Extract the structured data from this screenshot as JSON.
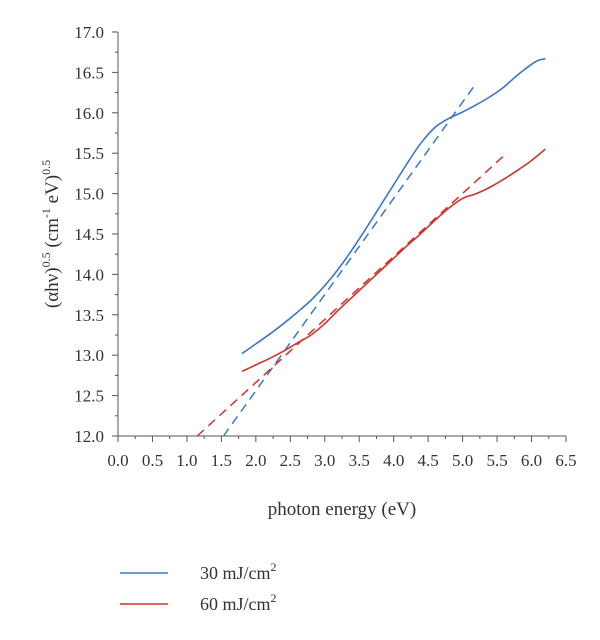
{
  "chart_data": {
    "type": "line",
    "title": "",
    "xlabel": "photon energy (eV)",
    "ylabel": {
      "base": "(αhν)",
      "base_exp": "0.5",
      "unit_open": " (cm",
      "unit_exp": "-1",
      "unit_mid": " eV)",
      "unit_exp2": "0.5"
    },
    "xlim": [
      0.0,
      6.5
    ],
    "ylim": [
      12.0,
      17.0
    ],
    "xticks": [
      "0.0",
      "0.5",
      "1.0",
      "1.5",
      "2.0",
      "2.5",
      "3.0",
      "3.5",
      "4.0",
      "4.5",
      "5.0",
      "5.5",
      "6.0",
      "6.5"
    ],
    "yticks": [
      "12.0",
      "12.5",
      "13.0",
      "13.5",
      "14.0",
      "14.5",
      "15.0",
      "15.5",
      "16.0",
      "16.5",
      "17.0"
    ],
    "grid": false,
    "legend_position": "bottom-left, below plot",
    "series": [
      {
        "name": "30 mJ/cm",
        "name_sup": "2",
        "color": "#3b78c4",
        "x": [
          1.8,
          2.0,
          2.2,
          2.4,
          2.6,
          2.8,
          3.0,
          3.2,
          3.4,
          3.6,
          3.8,
          4.0,
          4.2,
          4.4,
          4.6,
          4.8,
          5.0,
          5.2,
          5.4,
          5.6,
          5.8,
          6.0,
          6.1,
          6.2
        ],
        "y": [
          13.02,
          13.14,
          13.26,
          13.39,
          13.53,
          13.68,
          13.86,
          14.07,
          14.31,
          14.57,
          14.84,
          15.11,
          15.38,
          15.63,
          15.82,
          15.93,
          16.01,
          16.1,
          16.2,
          16.32,
          16.47,
          16.6,
          16.65,
          16.67
        ]
      },
      {
        "name": "60 mJ/cm",
        "name_sup": "2",
        "color": "#d2322d",
        "x": [
          1.8,
          2.0,
          2.2,
          2.4,
          2.6,
          2.8,
          3.0,
          3.2,
          3.4,
          3.6,
          3.8,
          4.0,
          4.2,
          4.4,
          4.6,
          4.8,
          5.0,
          5.2,
          5.4,
          5.6,
          5.8,
          6.0,
          6.2
        ],
        "y": [
          12.8,
          12.88,
          12.96,
          13.05,
          13.15,
          13.25,
          13.39,
          13.56,
          13.72,
          13.88,
          14.04,
          14.2,
          14.36,
          14.51,
          14.67,
          14.82,
          14.94,
          15.0,
          15.08,
          15.18,
          15.29,
          15.41,
          15.55
        ]
      }
    ],
    "fit_lines": [
      {
        "series": "30 mJ/cm2",
        "color": "#3b78c4",
        "dash": true,
        "x": [
          1.53,
          5.2
        ],
        "y": [
          12.0,
          16.37
        ]
      },
      {
        "series": "60 mJ/cm2",
        "color": "#d2322d",
        "dash": true,
        "x": [
          1.15,
          5.6
        ],
        "y": [
          12.0,
          15.47
        ]
      }
    ]
  }
}
